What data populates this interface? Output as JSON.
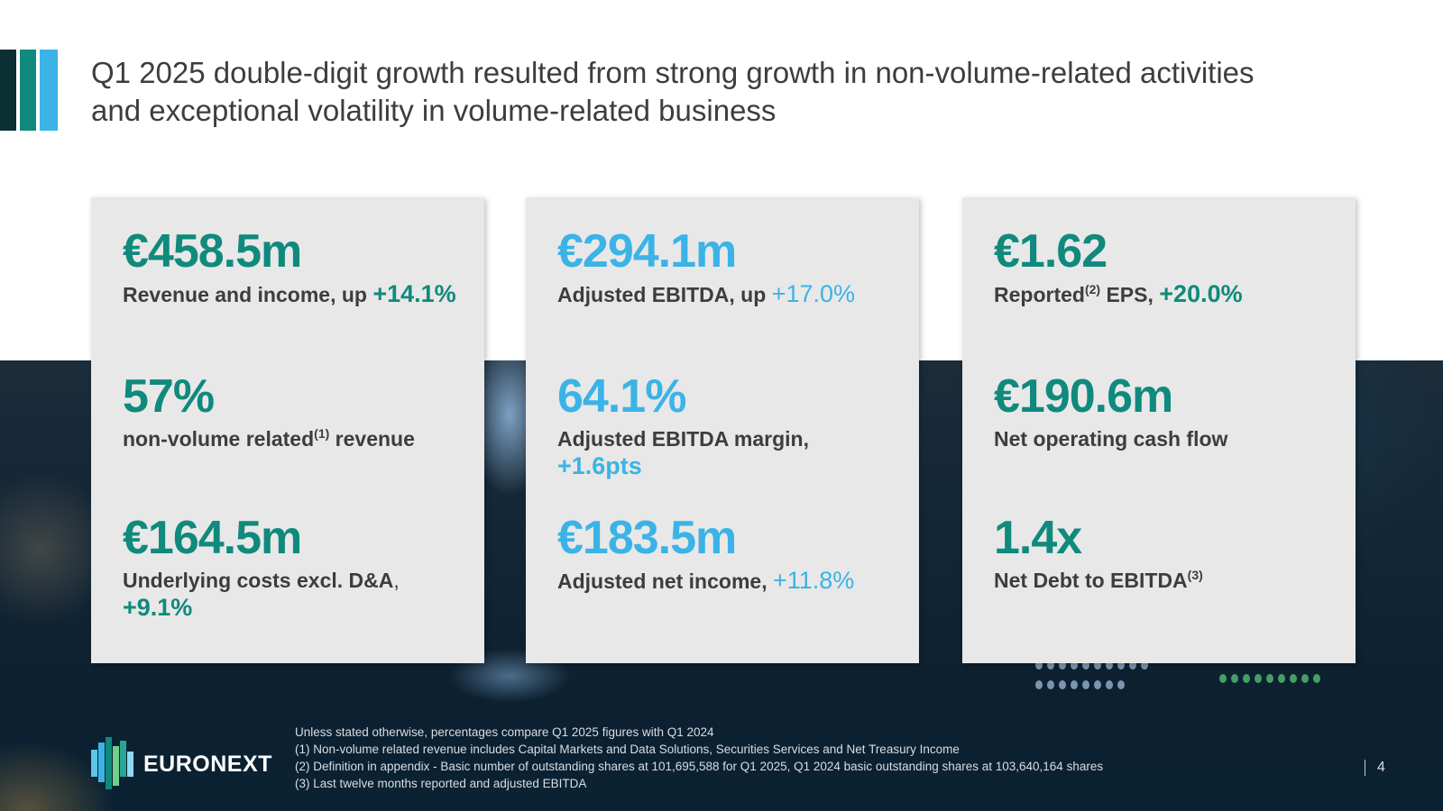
{
  "title": {
    "line1": "Q1 2025 double-digit growth resulted from strong growth in non-volume-related activities",
    "line2": "and exceptional volatility in volume-related business"
  },
  "colors": {
    "green": "#0f8a7d",
    "blue": "#3bb3e6",
    "dark_teal": "#0b2f33",
    "text": "#3d3d3d",
    "card": "#e8e8e8"
  },
  "cards": [
    {
      "accent": "green",
      "metrics": [
        {
          "value": "€458.5m",
          "label": "Revenue and income, up ",
          "change": "+14.1%"
        },
        {
          "value": "57%",
          "label": "non-volume related",
          "sup": "(1)",
          "label_after": " revenue"
        },
        {
          "value": "€164.5m",
          "label": "Underlying costs excl. D&A",
          "comma": ",",
          "change": "+9.1%"
        }
      ]
    },
    {
      "accent": "blue",
      "metrics": [
        {
          "value": "€294.1m",
          "label": "Adjusted EBITDA, up ",
          "change": "+17.0%"
        },
        {
          "value": "64.1%",
          "label": "Adjusted EBITDA margin,",
          "change": "+1.6pts"
        },
        {
          "value": "€183.5m",
          "label": "Adjusted net income, ",
          "change": "+11.8%"
        }
      ]
    },
    {
      "accent": "green",
      "metrics": [
        {
          "value": "€1.62",
          "label": "Reported",
          "sup": "(2)",
          "label_after": " EPS, ",
          "change": "+20.0%"
        },
        {
          "value": "€190.6m",
          "label": "Net operating cash flow"
        },
        {
          "value": "1.4x",
          "label": "Net Debt to EBITDA",
          "sup": "(3)"
        }
      ]
    }
  ],
  "logo": {
    "text": "EURONEXT",
    "icon": "euronext-logo-icon"
  },
  "footnotes": [
    "Unless stated otherwise, percentages compare Q1 2025 figures with Q1 2024",
    "(1) Non-volume related revenue includes Capital Markets and Data Solutions, Securities Services and Net Treasury Income",
    "(2) Definition in appendix - Basic number of outstanding shares at 101,695,588 for Q1 2025, Q1 2024 basic outstanding shares at 103,640,164 shares",
    "(3) Last twelve months reported and adjusted EBITDA"
  ],
  "page_number": "4"
}
